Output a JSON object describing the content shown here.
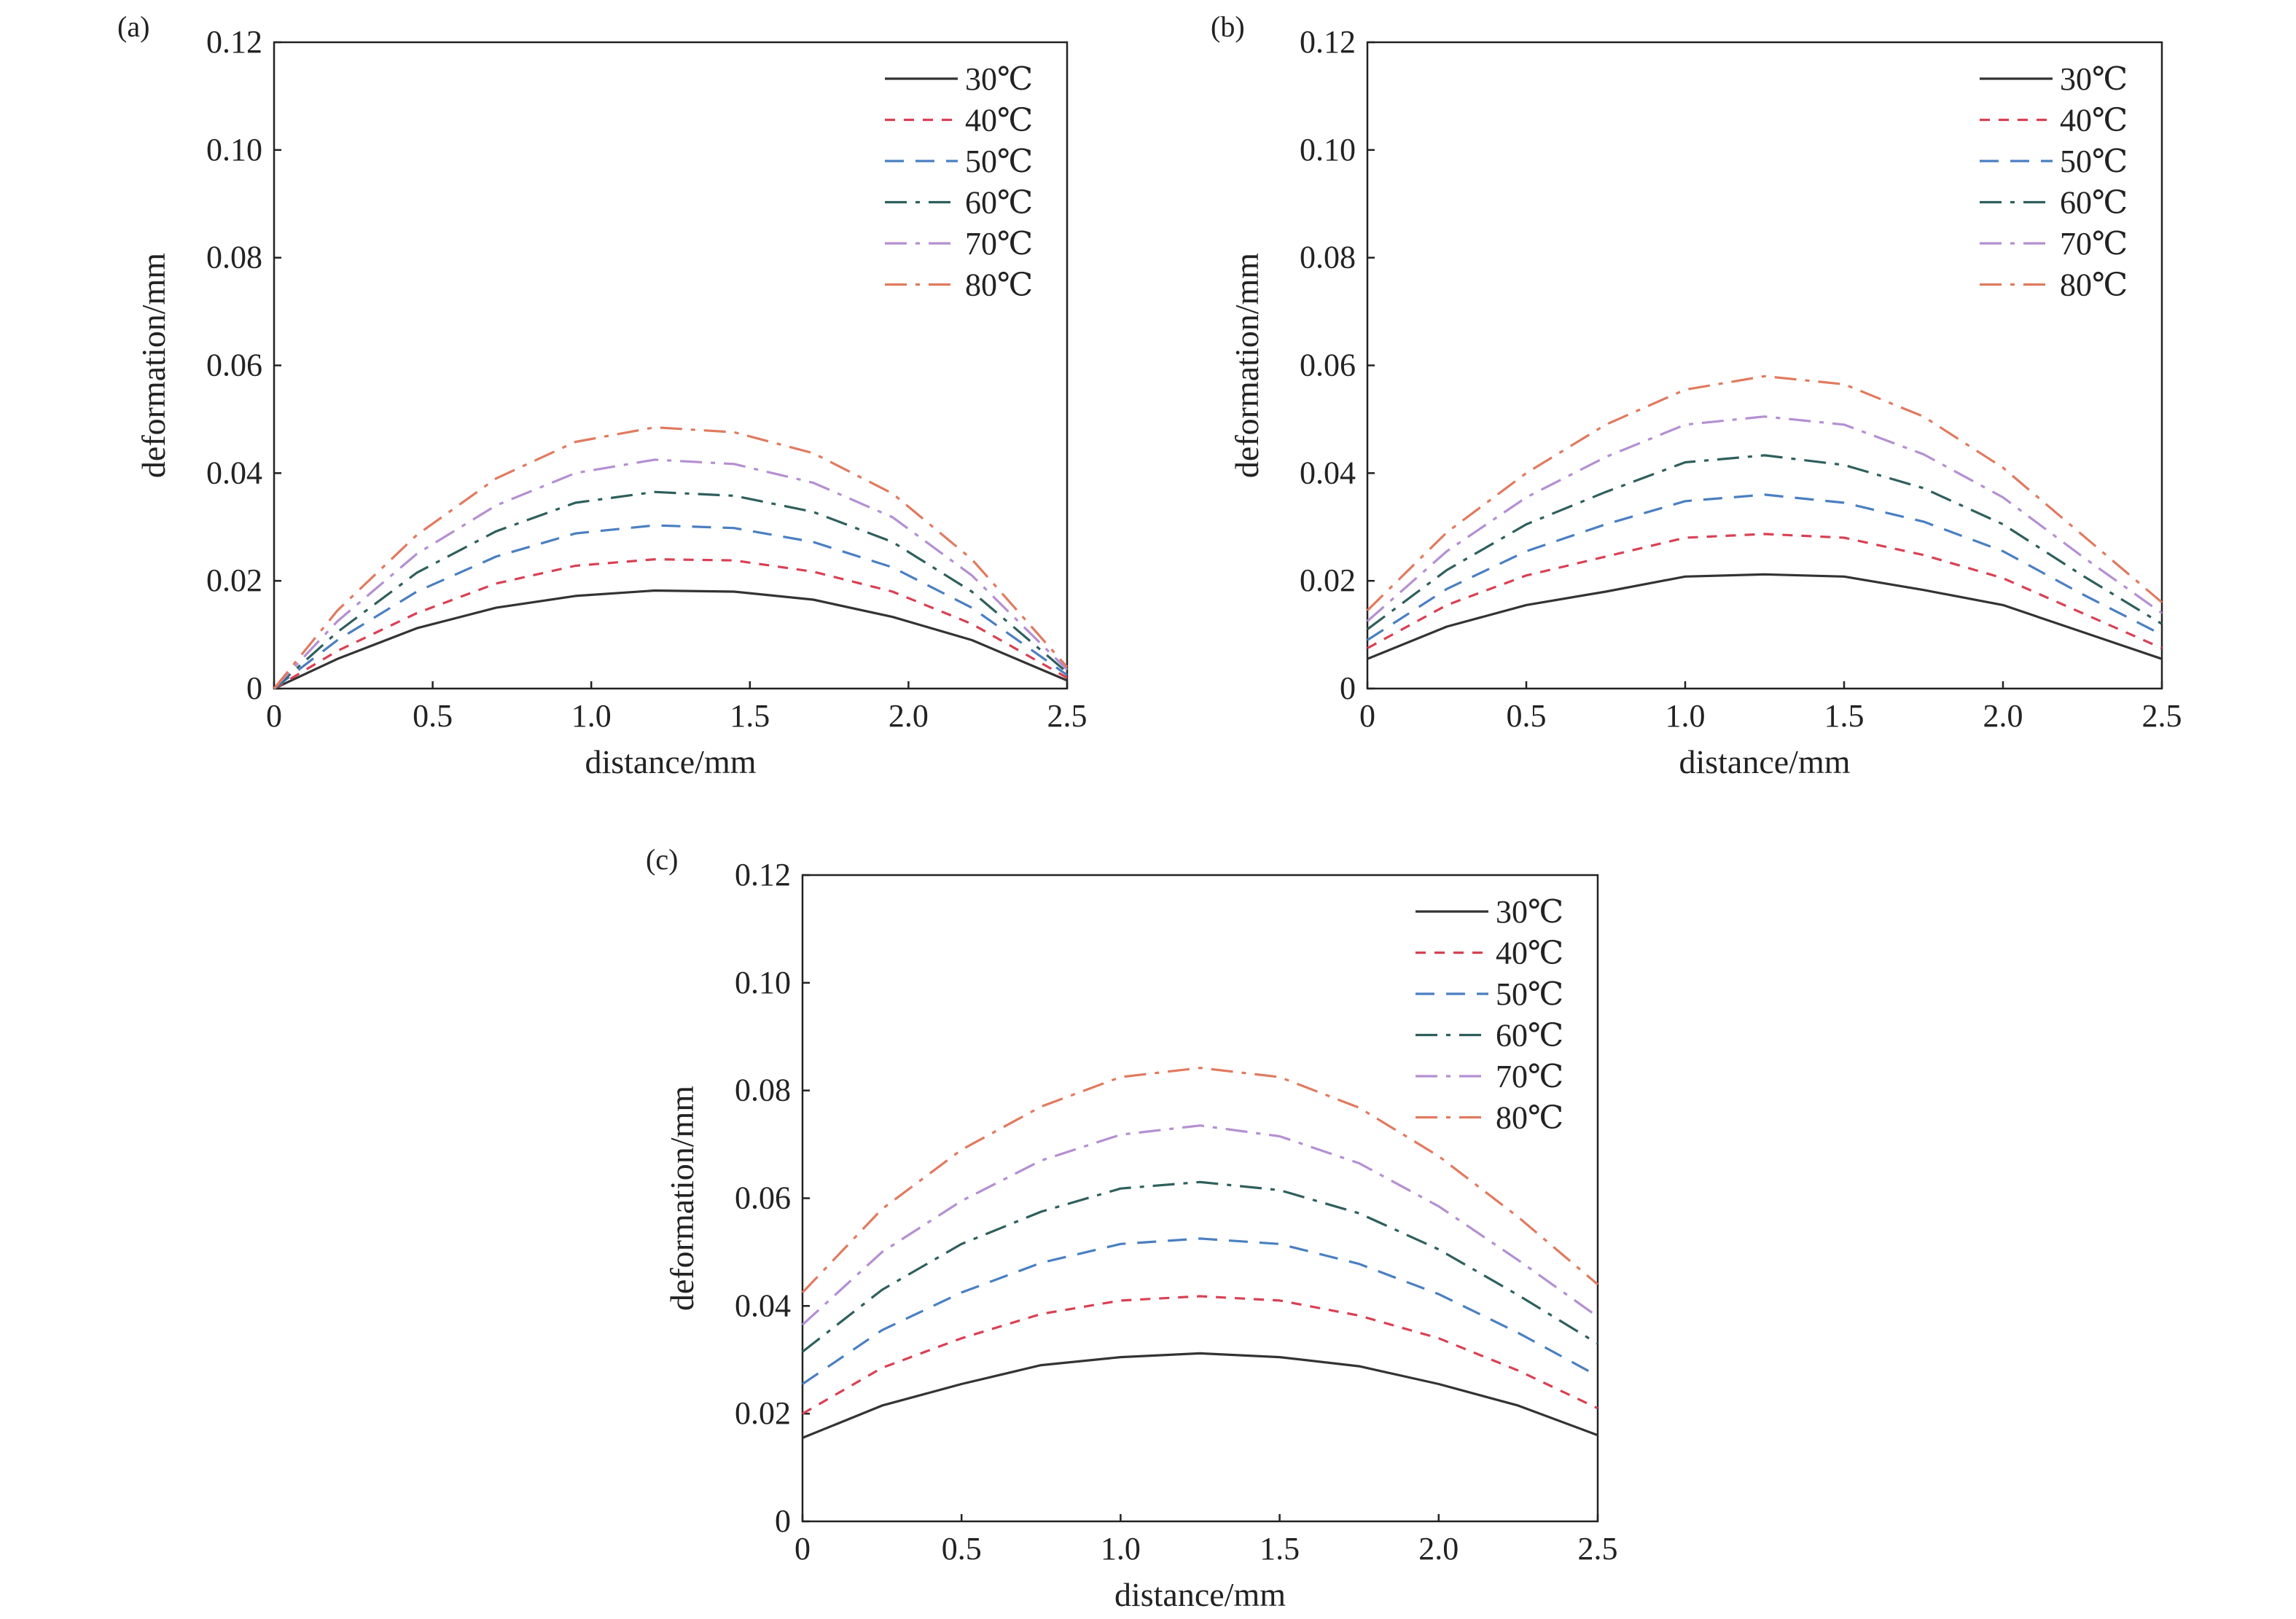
{
  "figure": {
    "panels": [
      "(a)",
      "(b)",
      "(c)"
    ]
  },
  "chart_data": [
    {
      "type": "line",
      "panel_label": "(a)",
      "xlabel": "distance/mm",
      "ylabel": "deformation/mm",
      "xlim": [
        0,
        2.5
      ],
      "ylim": [
        0,
        0.12
      ],
      "xticks": [
        "0",
        "0.5",
        "1.0",
        "1.5",
        "2.0",
        "2.5"
      ],
      "yticks": [
        "0",
        "0.02",
        "0.04",
        "0.06",
        "0.08",
        "0.10",
        "0.12"
      ],
      "legend": "top-right",
      "grid": false,
      "x": [
        0,
        0.2,
        0.45,
        0.7,
        0.95,
        1.2,
        1.45,
        1.7,
        1.95,
        2.2,
        2.5
      ],
      "series": [
        {
          "name": "30℃",
          "color": "#333333",
          "dash": "solid",
          "values": [
            0.0,
            0.0055,
            0.0112,
            0.015,
            0.0172,
            0.0182,
            0.018,
            0.0165,
            0.0133,
            0.009,
            0.0015
          ]
        },
        {
          "name": "40℃",
          "color": "#d94053",
          "dash": "dash",
          "values": [
            0.0,
            0.007,
            0.014,
            0.0195,
            0.0228,
            0.024,
            0.0238,
            0.0217,
            0.018,
            0.012,
            0.002
          ]
        },
        {
          "name": "50℃",
          "color": "#4a7fc1",
          "dash": "longdash",
          "values": [
            0.0,
            0.009,
            0.018,
            0.0245,
            0.0288,
            0.0303,
            0.0298,
            0.0272,
            0.0225,
            0.015,
            0.0025
          ]
        },
        {
          "name": "60℃",
          "color": "#2e5f5c",
          "dash": "dashdot",
          "values": [
            0.0,
            0.0105,
            0.0215,
            0.0292,
            0.0345,
            0.0365,
            0.0358,
            0.0328,
            0.0272,
            0.018,
            0.003
          ]
        },
        {
          "name": "70℃",
          "color": "#b48fd1",
          "dash": "dashdot",
          "values": [
            0.0,
            0.0125,
            0.025,
            0.034,
            0.04,
            0.0425,
            0.0417,
            0.0382,
            0.0318,
            0.021,
            0.0035
          ]
        },
        {
          "name": "80℃",
          "color": "#e07a5f",
          "dash": "dashdot",
          "values": [
            0.0,
            0.0145,
            0.0285,
            0.039,
            0.0458,
            0.0485,
            0.0476,
            0.0437,
            0.0362,
            0.024,
            0.004
          ]
        }
      ]
    },
    {
      "type": "line",
      "panel_label": "(b)",
      "xlabel": "distance/mm",
      "ylabel": "deformation/mm",
      "xlim": [
        0,
        2.5
      ],
      "ylim": [
        0,
        0.12
      ],
      "xticks": [
        "0",
        "0.5",
        "1.0",
        "1.5",
        "2.0",
        "2.5"
      ],
      "yticks": [
        "0",
        "0.02",
        "0.04",
        "0.06",
        "0.08",
        "0.10",
        "0.12"
      ],
      "legend": "top-right",
      "grid": false,
      "x": [
        0,
        0.25,
        0.5,
        0.75,
        1.0,
        1.25,
        1.5,
        1.75,
        2.0,
        2.25,
        2.5
      ],
      "series": [
        {
          "name": "30℃",
          "color": "#333333",
          "dash": "solid",
          "values": [
            0.0055,
            0.0115,
            0.0155,
            0.018,
            0.0208,
            0.0212,
            0.0208,
            0.0183,
            0.0155,
            0.0105,
            0.0055
          ]
        },
        {
          "name": "40℃",
          "color": "#d94053",
          "dash": "dash",
          "values": [
            0.0075,
            0.0155,
            0.021,
            0.0245,
            0.028,
            0.0287,
            0.028,
            0.0248,
            0.0205,
            0.014,
            0.0075
          ]
        },
        {
          "name": "50℃",
          "color": "#4a7fc1",
          "dash": "longdash",
          "values": [
            0.009,
            0.0185,
            0.0255,
            0.0305,
            0.0348,
            0.036,
            0.0345,
            0.031,
            0.0255,
            0.0175,
            0.01
          ]
        },
        {
          "name": "60℃",
          "color": "#2e5f5c",
          "dash": "dashdot",
          "values": [
            0.011,
            0.022,
            0.0305,
            0.0365,
            0.042,
            0.0433,
            0.0415,
            0.0372,
            0.0305,
            0.021,
            0.012
          ]
        },
        {
          "name": "70℃",
          "color": "#b48fd1",
          "dash": "dashdot",
          "values": [
            0.0125,
            0.0255,
            0.0355,
            0.043,
            0.049,
            0.0505,
            0.049,
            0.0435,
            0.0355,
            0.0245,
            0.014
          ]
        },
        {
          "name": "80℃",
          "color": "#e07a5f",
          "dash": "dashdot",
          "values": [
            0.0145,
            0.029,
            0.04,
            0.049,
            0.0555,
            0.058,
            0.0565,
            0.0505,
            0.041,
            0.0285,
            0.016
          ]
        }
      ]
    },
    {
      "type": "line",
      "panel_label": "(c)",
      "xlabel": "distance/mm",
      "ylabel": "deformation/mm",
      "xlim": [
        0,
        2.5
      ],
      "ylim": [
        0,
        0.12
      ],
      "xticks": [
        "0",
        "0.5",
        "1.0",
        "1.5",
        "2.0",
        "2.5"
      ],
      "yticks": [
        "0",
        "0.02",
        "0.04",
        "0.06",
        "0.08",
        "0.10",
        "0.12"
      ],
      "legend": "top-right",
      "grid": false,
      "x": [
        0,
        0.25,
        0.5,
        0.75,
        1.0,
        1.25,
        1.5,
        1.75,
        2.0,
        2.25,
        2.5
      ],
      "series": [
        {
          "name": "30℃",
          "color": "#333333",
          "dash": "solid",
          "values": [
            0.0155,
            0.0215,
            0.0255,
            0.029,
            0.0305,
            0.0312,
            0.0305,
            0.0288,
            0.0255,
            0.0215,
            0.016
          ]
        },
        {
          "name": "40℃",
          "color": "#d94053",
          "dash": "dash",
          "values": [
            0.02,
            0.0285,
            0.034,
            0.0385,
            0.041,
            0.0418,
            0.041,
            0.0382,
            0.034,
            0.028,
            0.021
          ]
        },
        {
          "name": "50℃",
          "color": "#4a7fc1",
          "dash": "longdash",
          "values": [
            0.0255,
            0.0355,
            0.0425,
            0.048,
            0.0515,
            0.0525,
            0.0515,
            0.0478,
            0.0422,
            0.035,
            0.027
          ]
        },
        {
          "name": "60℃",
          "color": "#2e5f5c",
          "dash": "dashdot",
          "values": [
            0.0315,
            0.043,
            0.0515,
            0.0575,
            0.0618,
            0.063,
            0.0615,
            0.0572,
            0.0505,
            0.042,
            0.033
          ]
        },
        {
          "name": "70℃",
          "color": "#b48fd1",
          "dash": "dashdot",
          "values": [
            0.0365,
            0.05,
            0.0595,
            0.067,
            0.0718,
            0.0735,
            0.0715,
            0.0665,
            0.0585,
            0.0485,
            0.038
          ]
        },
        {
          "name": "80℃",
          "color": "#e07a5f",
          "dash": "dashdot",
          "values": [
            0.0425,
            0.058,
            0.069,
            0.077,
            0.0825,
            0.0842,
            0.0825,
            0.0768,
            0.0678,
            0.0565,
            0.044
          ]
        }
      ]
    }
  ]
}
